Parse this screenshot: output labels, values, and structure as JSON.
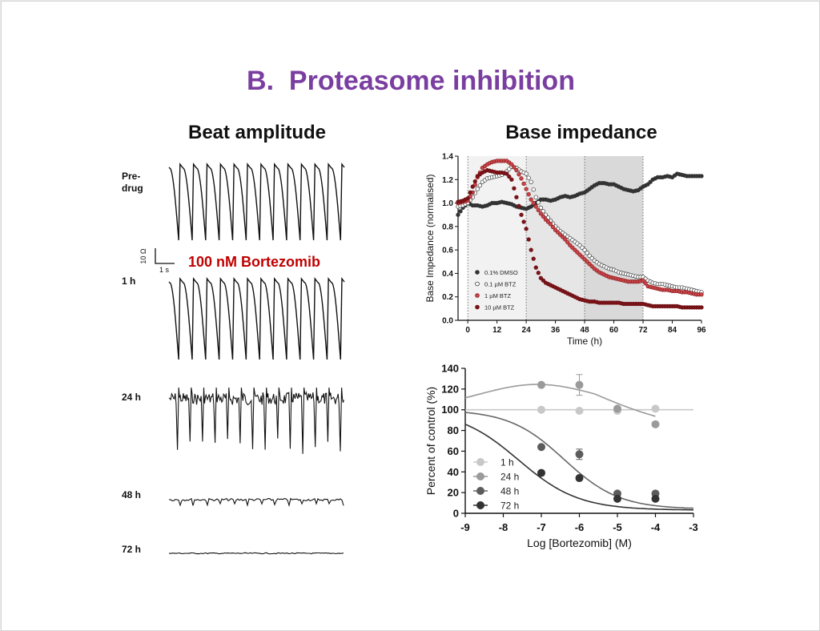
{
  "slide": {
    "title": "B.  Proteasome inhibition",
    "title_color": "#7a3ea0",
    "left_heading": "Beat amplitude",
    "right_heading": "Base impedance",
    "drug_label": "100 nM Bortezomib",
    "drug_label_color": "#c00000",
    "scale_bar": {
      "y_label": "10 Ω",
      "x_label": "1 s"
    },
    "traces": [
      {
        "label": "Pre-\ndrug",
        "lines": [
          "Pre-",
          "drug"
        ],
        "kind": "full"
      },
      {
        "label": "1 h",
        "lines": [
          "1 h"
        ],
        "kind": "full"
      },
      {
        "label": "24 h",
        "lines": [
          "24 h"
        ],
        "kind": "noisy"
      },
      {
        "label": "48 h",
        "lines": [
          "48 h"
        ],
        "kind": "small"
      },
      {
        "label": "72 h",
        "lines": [
          "72 h"
        ],
        "kind": "flat"
      }
    ]
  },
  "chart_data": [
    {
      "type": "scatter",
      "title": "Base impedance",
      "xlabel": "Time (h)",
      "ylabel": "Base Impedance (normalised)",
      "xlim": [
        -4,
        96
      ],
      "ylim": [
        0,
        1.4
      ],
      "xticks": [
        0,
        12,
        24,
        36,
        48,
        60,
        72,
        84,
        96
      ],
      "yticks": [
        0.0,
        0.2,
        0.4,
        0.6,
        0.8,
        1.0,
        1.2,
        1.4
      ],
      "shaded_regions": [
        {
          "x": [
            0,
            24
          ],
          "color": "#f2f2f2"
        },
        {
          "x": [
            24,
            48
          ],
          "color": "#e6e6e6"
        },
        {
          "x": [
            48,
            72
          ],
          "color": "#d9d9d9"
        }
      ],
      "dotted_lines_x": [
        0,
        24,
        48,
        72
      ],
      "legend": "bottom-left",
      "series": [
        {
          "name": "0.1% DMSO",
          "color": "#333333",
          "fill": "#333333",
          "x": [
            -4,
            -2,
            0,
            2,
            4,
            6,
            8,
            10,
            12,
            14,
            16,
            18,
            20,
            22,
            24,
            26,
            28,
            30,
            32,
            34,
            36,
            38,
            40,
            42,
            44,
            46,
            48,
            50,
            52,
            54,
            56,
            58,
            60,
            62,
            64,
            66,
            68,
            70,
            72,
            74,
            76,
            78,
            80,
            82,
            84,
            86,
            88,
            90,
            92,
            94,
            96
          ],
          "y": [
            0.9,
            0.96,
            1.0,
            0.98,
            0.98,
            0.97,
            0.98,
            1.0,
            1.0,
            1.01,
            1.0,
            0.99,
            0.97,
            0.96,
            0.95,
            0.97,
            1.0,
            1.03,
            1.03,
            1.02,
            1.03,
            1.05,
            1.06,
            1.05,
            1.06,
            1.08,
            1.09,
            1.12,
            1.15,
            1.17,
            1.17,
            1.16,
            1.16,
            1.14,
            1.12,
            1.11,
            1.1,
            1.11,
            1.14,
            1.16,
            1.2,
            1.22,
            1.22,
            1.23,
            1.22,
            1.25,
            1.24,
            1.23,
            1.23,
            1.23,
            1.23
          ]
        },
        {
          "name": "0.1 µM BTZ",
          "color": "#333333",
          "fill": "#ffffff",
          "x": [
            -4,
            -2,
            0,
            2,
            4,
            6,
            8,
            10,
            12,
            14,
            16,
            18,
            20,
            22,
            24,
            26,
            28,
            30,
            32,
            34,
            36,
            38,
            40,
            42,
            44,
            46,
            48,
            50,
            52,
            54,
            56,
            58,
            60,
            62,
            64,
            66,
            68,
            70,
            72,
            74,
            76,
            78,
            80,
            82,
            84,
            86,
            88,
            90,
            92,
            94,
            96
          ],
          "y": [
            0.97,
            0.98,
            1.0,
            1.05,
            1.12,
            1.18,
            1.21,
            1.22,
            1.23,
            1.24,
            1.27,
            1.31,
            1.3,
            1.27,
            1.25,
            1.18,
            1.05,
            0.96,
            0.9,
            0.85,
            0.8,
            0.76,
            0.73,
            0.7,
            0.67,
            0.64,
            0.6,
            0.55,
            0.51,
            0.48,
            0.46,
            0.44,
            0.43,
            0.41,
            0.4,
            0.39,
            0.38,
            0.37,
            0.37,
            0.34,
            0.32,
            0.31,
            0.31,
            0.3,
            0.29,
            0.28,
            0.28,
            0.27,
            0.26,
            0.25,
            0.24
          ]
        },
        {
          "name": "1 µM BTZ",
          "color": "#8b1a1a",
          "fill": "#c8464b",
          "x": [
            -4,
            -2,
            0,
            2,
            4,
            6,
            8,
            10,
            12,
            14,
            16,
            18,
            20,
            22,
            24,
            26,
            28,
            30,
            32,
            34,
            36,
            38,
            40,
            42,
            44,
            46,
            48,
            50,
            52,
            54,
            56,
            58,
            60,
            62,
            64,
            66,
            68,
            70,
            72,
            74,
            76,
            78,
            80,
            82,
            84,
            86,
            88,
            90,
            92,
            94,
            96
          ],
          "y": [
            1.0,
            1.01,
            1.02,
            1.09,
            1.22,
            1.3,
            1.33,
            1.35,
            1.36,
            1.36,
            1.36,
            1.33,
            1.28,
            1.21,
            1.12,
            1.03,
            0.97,
            0.91,
            0.86,
            0.82,
            0.77,
            0.73,
            0.69,
            0.64,
            0.6,
            0.56,
            0.52,
            0.48,
            0.44,
            0.41,
            0.39,
            0.37,
            0.36,
            0.35,
            0.34,
            0.33,
            0.33,
            0.33,
            0.34,
            0.29,
            0.28,
            0.27,
            0.26,
            0.26,
            0.25,
            0.25,
            0.24,
            0.24,
            0.23,
            0.22,
            0.22
          ]
        },
        {
          "name": "10 µM BTZ",
          "color": "#6e0f14",
          "fill": "#7a1418",
          "x": [
            -4,
            -2,
            0,
            2,
            4,
            6,
            8,
            10,
            12,
            14,
            16,
            18,
            20,
            22,
            24,
            26,
            28,
            30,
            32,
            34,
            36,
            38,
            40,
            42,
            44,
            46,
            48,
            50,
            52,
            54,
            56,
            58,
            60,
            62,
            64,
            66,
            68,
            70,
            72,
            74,
            76,
            78,
            80,
            82,
            84,
            86,
            88,
            90,
            92,
            94,
            96
          ],
          "y": [
            1.01,
            1.02,
            1.04,
            1.14,
            1.23,
            1.26,
            1.28,
            1.27,
            1.26,
            1.26,
            1.25,
            1.2,
            1.05,
            0.9,
            0.78,
            0.6,
            0.45,
            0.36,
            0.32,
            0.3,
            0.28,
            0.26,
            0.24,
            0.22,
            0.2,
            0.18,
            0.17,
            0.16,
            0.16,
            0.15,
            0.15,
            0.15,
            0.15,
            0.15,
            0.14,
            0.14,
            0.14,
            0.14,
            0.14,
            0.13,
            0.12,
            0.12,
            0.12,
            0.12,
            0.12,
            0.12,
            0.11,
            0.11,
            0.11,
            0.11,
            0.11
          ]
        }
      ]
    },
    {
      "type": "scatter",
      "title": "",
      "xlabel": "Log [Bortezomib] (M)",
      "ylabel": "Percent of control (%)",
      "xlim": [
        -9,
        -3
      ],
      "ylim": [
        0,
        140
      ],
      "xticks": [
        -9,
        -8,
        -7,
        -6,
        -5,
        -4,
        -3
      ],
      "yticks": [
        0,
        20,
        40,
        60,
        80,
        100,
        120,
        140
      ],
      "legend": "bottom-left",
      "series": [
        {
          "name": "1 h",
          "color": "#c8c8c8",
          "curve_color": "#c8c8c8",
          "x": [
            -7,
            -6,
            -5,
            -4
          ],
          "y": [
            100,
            99,
            99,
            101
          ],
          "error": [
            0,
            0,
            0,
            0
          ],
          "curve": {
            "kind": "flat",
            "bottom": 100,
            "top": 100,
            "logIC50": -5,
            "hill": 1
          }
        },
        {
          "name": "24 h",
          "color": "#9a9a9a",
          "curve_color": "#9a9a9a",
          "x": [
            -7,
            -6,
            -5,
            -4
          ],
          "y": [
            124,
            124,
            101,
            86
          ],
          "error": [
            0,
            10,
            0,
            0
          ],
          "curve": {
            "kind": "bell"
          }
        },
        {
          "name": "48 h",
          "color": "#5c5c5c",
          "curve_color": "#666666",
          "x": [
            -7,
            -6,
            -5,
            -4
          ],
          "y": [
            64,
            57,
            19,
            19
          ],
          "error": [
            0,
            5,
            0,
            0
          ],
          "curve": {
            "kind": "sigmoid",
            "bottom": 4,
            "top": 100,
            "logIC50": -6.4,
            "hill": 0.6
          }
        },
        {
          "name": "72 h",
          "color": "#333333",
          "curve_color": "#333333",
          "x": [
            -7,
            -6,
            -5,
            -4
          ],
          "y": [
            39,
            34,
            14,
            14
          ],
          "error": [
            0,
            0,
            0,
            0
          ],
          "curve": {
            "kind": "sigmoid",
            "bottom": 3,
            "top": 100,
            "logIC50": -7.6,
            "hill": 0.55
          }
        }
      ]
    }
  ]
}
